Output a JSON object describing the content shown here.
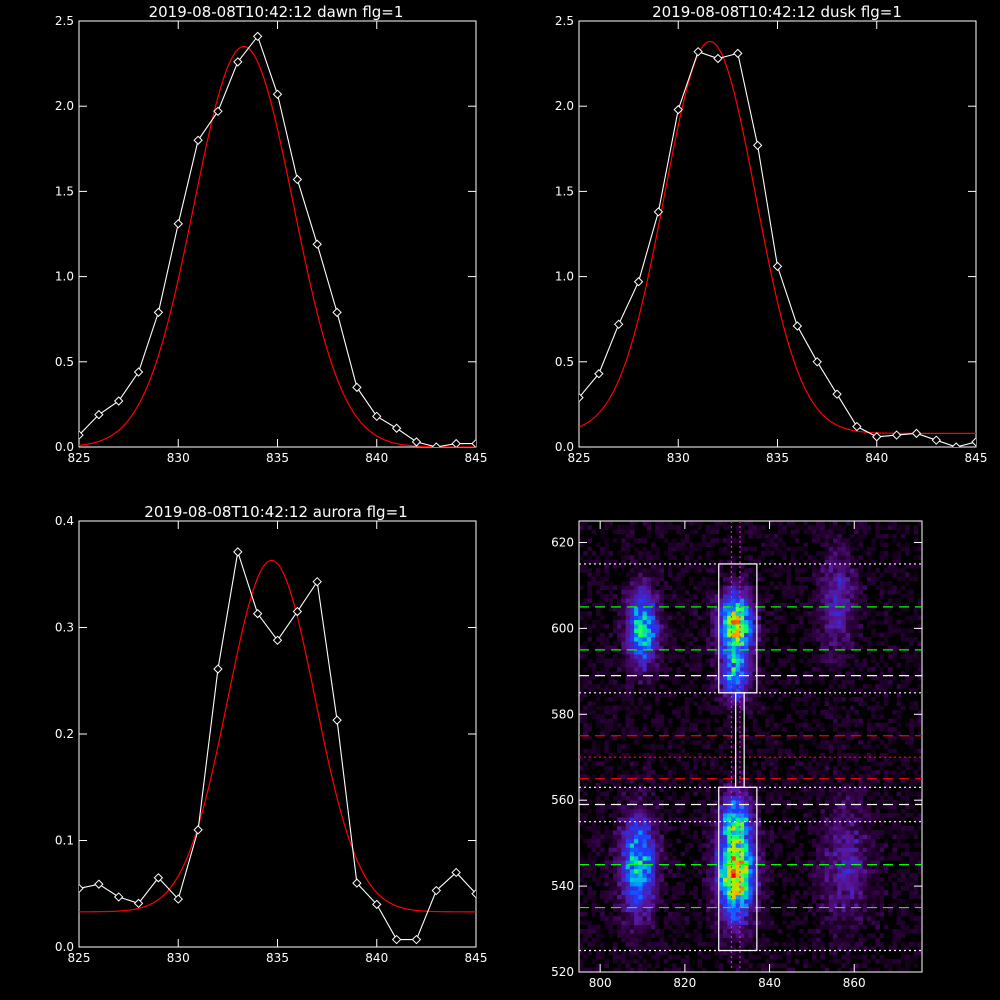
{
  "colors": {
    "background": "#000000",
    "axis": "#ffffff",
    "data_line": "#ffffff",
    "fit_line": "#ff0000",
    "guide_white": "#ffffff",
    "guide_green": "#00ff00",
    "guide_red": "#ff0000",
    "guide_magenta": "#ff00ff"
  },
  "chart_data": [
    {
      "id": "dawn",
      "type": "line",
      "title": "2019-08-08T10:42:12 dawn flg=1",
      "xlim": [
        825,
        845
      ],
      "ylim": [
        0,
        2.5
      ],
      "xticks": [
        "825",
        "830",
        "835",
        "840",
        "845"
      ],
      "xtick_values": [
        825,
        830,
        835,
        840,
        845
      ],
      "yticks": [
        "0.0",
        "0.5",
        "1.0",
        "1.5",
        "2.0",
        "2.5"
      ],
      "ytick_values": [
        0,
        0.5,
        1.0,
        1.5,
        2.0,
        2.5
      ],
      "series": [
        {
          "kind": "data",
          "markers": "diamond",
          "x": [
            825,
            826,
            827,
            828,
            829,
            830,
            831,
            832,
            833,
            834,
            835,
            836,
            837,
            838,
            839,
            840,
            841,
            842,
            843,
            844,
            845
          ],
          "y": [
            0.07,
            0.19,
            0.27,
            0.44,
            0.79,
            1.31,
            1.8,
            1.97,
            2.26,
            2.41,
            2.07,
            1.57,
            1.19,
            0.79,
            0.35,
            0.18,
            0.11,
            0.03,
            0.0,
            0.02,
            0.02
          ]
        },
        {
          "kind": "fit",
          "model": "gaussian",
          "amplitude": 2.35,
          "center": 833.3,
          "sigma": 2.5,
          "offset": 0.0
        }
      ]
    },
    {
      "id": "dusk",
      "type": "line",
      "title": "2019-08-08T10:42:12 dusk flg=1",
      "xlim": [
        825,
        845
      ],
      "ylim": [
        0,
        2.5
      ],
      "xticks": [
        "825",
        "830",
        "835",
        "840",
        "845"
      ],
      "xtick_values": [
        825,
        830,
        835,
        840,
        845
      ],
      "yticks": [
        "0.0",
        "0.5",
        "1.0",
        "1.5",
        "2.0",
        "2.5"
      ],
      "ytick_values": [
        0,
        0.5,
        1.0,
        1.5,
        2.0,
        2.5
      ],
      "series": [
        {
          "kind": "data",
          "markers": "diamond",
          "x": [
            825,
            826,
            827,
            828,
            829,
            830,
            831,
            832,
            833,
            834,
            835,
            836,
            837,
            838,
            839,
            840,
            841,
            842,
            843,
            844,
            845
          ],
          "y": [
            0.29,
            0.43,
            0.72,
            0.97,
            1.38,
            1.98,
            2.32,
            2.28,
            2.31,
            1.77,
            1.06,
            0.71,
            0.5,
            0.31,
            0.12,
            0.06,
            0.07,
            0.08,
            0.04,
            0.0,
            0.03
          ]
        },
        {
          "kind": "fit",
          "model": "gaussian",
          "amplitude": 2.3,
          "center": 831.6,
          "sigma": 2.3,
          "offset": 0.08
        }
      ]
    },
    {
      "id": "aurora",
      "type": "line",
      "title": "2019-08-08T10:42:12 aurora flg=1",
      "xlim": [
        825,
        845
      ],
      "ylim": [
        0,
        0.4
      ],
      "xticks": [
        "825",
        "830",
        "835",
        "840",
        "845"
      ],
      "xtick_values": [
        825,
        830,
        835,
        840,
        845
      ],
      "yticks": [
        "0.0",
        "0.1",
        "0.2",
        "0.3",
        "0.4"
      ],
      "ytick_values": [
        0,
        0.1,
        0.2,
        0.3,
        0.4
      ],
      "series": [
        {
          "kind": "data",
          "markers": "diamond",
          "x": [
            825,
            826,
            827,
            828,
            829,
            830,
            831,
            832,
            833,
            834,
            835,
            836,
            837,
            838,
            839,
            840,
            841,
            842,
            843,
            844,
            845
          ],
          "y": [
            0.055,
            0.059,
            0.047,
            0.041,
            0.065,
            0.045,
            0.11,
            0.261,
            0.371,
            0.313,
            0.288,
            0.315,
            0.343,
            0.213,
            0.06,
            0.04,
            0.007,
            0.007,
            0.053,
            0.07,
            0.05
          ]
        },
        {
          "kind": "fit",
          "model": "gaussian",
          "amplitude": 0.33,
          "center": 834.7,
          "sigma": 2.2,
          "offset": 0.033
        }
      ]
    },
    {
      "id": "spectrogram",
      "type": "heatmap",
      "title": "",
      "xlim": [
        795,
        876
      ],
      "ylim": [
        520,
        625
      ],
      "xticks": [
        "800",
        "820",
        "840",
        "860"
      ],
      "xtick_values": [
        800,
        820,
        840,
        860
      ],
      "yticks": [
        "520",
        "540",
        "560",
        "580",
        "600",
        "620"
      ],
      "ytick_values": [
        520,
        540,
        560,
        580,
        600,
        620
      ],
      "colormap": "rainbow",
      "blobs": [
        {
          "x": 810,
          "y": 600,
          "sx": 2.5,
          "sy": 6,
          "amp": 0.55
        },
        {
          "x": 809,
          "y": 545,
          "sx": 3,
          "sy": 8,
          "amp": 0.5
        },
        {
          "x": 832,
          "y": 601,
          "sx": 2.8,
          "sy": 5,
          "amp": 0.75
        },
        {
          "x": 832,
          "y": 589,
          "sx": 2.5,
          "sy": 4,
          "amp": 0.45
        },
        {
          "x": 832,
          "y": 543,
          "sx": 3,
          "sy": 7,
          "amp": 0.85
        },
        {
          "x": 832,
          "y": 556,
          "sx": 2.5,
          "sy": 4,
          "amp": 0.45
        },
        {
          "x": 856,
          "y": 606,
          "sx": 3,
          "sy": 8,
          "amp": 0.22
        },
        {
          "x": 858,
          "y": 545,
          "sx": 4,
          "sy": 10,
          "amp": 0.2
        }
      ],
      "boxes": [
        {
          "x0": 828,
          "x1": 837,
          "y0": 585,
          "y1": 615
        },
        {
          "x0": 828,
          "x1": 837,
          "y0": 525,
          "y1": 563
        },
        {
          "x0": 832,
          "x1": 834,
          "y0": 563,
          "y1": 585
        }
      ],
      "hlines": [
        {
          "y": 615,
          "style": "dotted",
          "color": "guide_white"
        },
        {
          "y": 605,
          "style": "dashed",
          "color": "guide_green"
        },
        {
          "y": 595,
          "style": "dashed",
          "color": "guide_green"
        },
        {
          "y": 589,
          "style": "dashed",
          "color": "guide_white"
        },
        {
          "y": 585,
          "style": "dotted",
          "color": "guide_white"
        },
        {
          "y": 575,
          "style": "dashed",
          "color": "guide_red"
        },
        {
          "y": 570,
          "style": "dotted",
          "color": "guide_red"
        },
        {
          "y": 565,
          "style": "dashed",
          "color": "guide_red"
        },
        {
          "y": 563,
          "style": "dotted",
          "color": "guide_white"
        },
        {
          "y": 559,
          "style": "dashed",
          "color": "guide_white"
        },
        {
          "y": 555,
          "style": "dotted",
          "color": "guide_white"
        },
        {
          "y": 545,
          "style": "dashed",
          "color": "guide_green"
        },
        {
          "y": 535,
          "style": "dashed",
          "color": "guide_green"
        },
        {
          "y": 525,
          "style": "dotted",
          "color": "guide_white"
        }
      ],
      "vlines": [
        {
          "x": 831,
          "style": "dotted",
          "color": "guide_magenta"
        },
        {
          "x": 833,
          "style": "dotted",
          "color": "guide_magenta"
        }
      ]
    }
  ]
}
